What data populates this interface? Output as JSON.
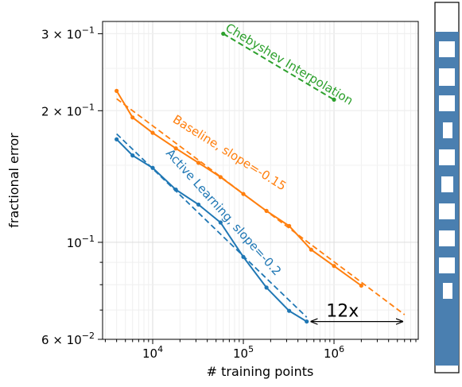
{
  "chart_data": {
    "type": "line",
    "xlabel": "# training points",
    "ylabel": "fractional error",
    "x_scale": "log",
    "y_scale": "log",
    "xlim": [
      2800,
      8500000
    ],
    "ylim": [
      0.06,
      0.32
    ],
    "grid": true,
    "x_ticks": [
      {
        "value": 10000,
        "base": "10",
        "exp": "4"
      },
      {
        "value": 100000,
        "base": "10",
        "exp": "5"
      },
      {
        "value": 1000000,
        "base": "10",
        "exp": "6"
      }
    ],
    "y_ticks": [
      {
        "value": 0.06,
        "label": "6 × 10",
        "exp": "−2"
      },
      {
        "value": 0.1,
        "label": "10",
        "exp": "−1"
      },
      {
        "value": 0.2,
        "label": "2 × 10",
        "exp": "−1"
      },
      {
        "value": 0.3,
        "label": "3 × 10",
        "exp": "−1"
      }
    ],
    "series": [
      {
        "color": "#ff7f0e",
        "marker": true,
        "x": [
          4000,
          6000,
          10000,
          18000,
          32000,
          56000,
          100000,
          180000,
          320000,
          560000,
          1000000,
          2000000
        ],
        "y": [
          0.222,
          0.193,
          0.178,
          0.164,
          0.152,
          0.141,
          0.129,
          0.118,
          0.109,
          0.0962,
          0.0883,
          0.0796
        ]
      },
      {
        "color": "#1f77b4",
        "marker": true,
        "x": [
          4000,
          6000,
          10000,
          18000,
          32000,
          56000,
          100000,
          180000,
          320000,
          500000
        ],
        "y": [
          0.172,
          0.158,
          0.148,
          0.132,
          0.122,
          0.111,
          0.0926,
          0.0788,
          0.0697,
          0.0659
        ]
      },
      {
        "color": "#2ca02c",
        "marker": true,
        "dashed": true,
        "x": [
          60000,
          1000000
        ],
        "y": [
          0.3,
          0.212
        ]
      },
      {
        "color": "#ff7f0e",
        "dashed": true,
        "fit": true,
        "x": [
          4000,
          6000000
        ],
        "y": [
          0.213,
          0.0683
        ]
      },
      {
        "color": "#1f77b4",
        "dashed": true,
        "fit": true,
        "x": [
          4000,
          500000
        ],
        "y": [
          0.177,
          0.0674
        ]
      }
    ],
    "annotations": [
      {
        "text": "Chebyshev Interpolation",
        "color": "#2ca02c",
        "x": 320000,
        "y": 0.255,
        "angle": 31
      },
      {
        "text": "Baseline, slope=-0.15",
        "color": "#ff7f0e",
        "x": 70000,
        "y": 0.16,
        "angle": 32
      },
      {
        "text": "Active Learning, slope=-0.2",
        "color": "#1f77b4",
        "x": 60000,
        "y": 0.117,
        "angle": 48
      }
    ],
    "arrow": {
      "x_from": 550000,
      "x_to": 5800000,
      "y": 0.0659,
      "label": "12x"
    }
  },
  "colorbar": {
    "fill": "#4a7fb0",
    "bg": "#ffffff"
  }
}
